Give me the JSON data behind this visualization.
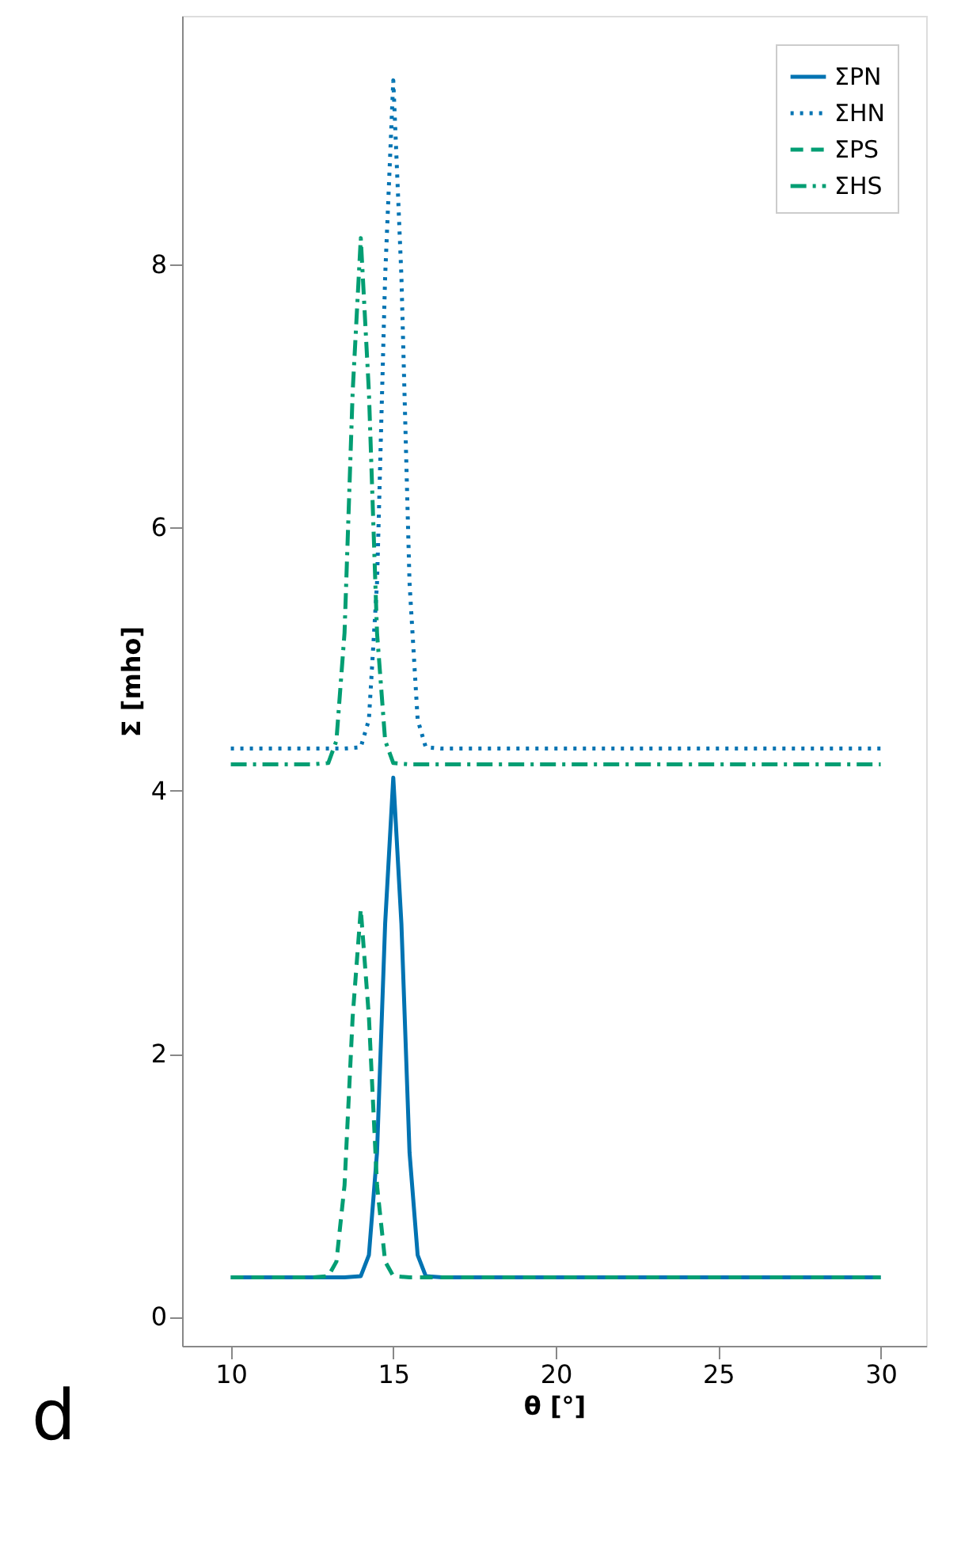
{
  "chart_data": {
    "type": "line",
    "xlabel": "θ [°]",
    "ylabel": "Σ [mho]",
    "xlim": [
      8.5,
      31.4
    ],
    "ylim": [
      -0.22,
      9.89
    ],
    "xticks": [
      10,
      15,
      20,
      25,
      30
    ],
    "yticks": [
      0,
      2,
      4,
      6,
      8
    ],
    "grid": false,
    "legend": "top right",
    "annotations": [
      "d"
    ],
    "series": [
      {
        "name": "ΣPN",
        "color": "#0173b2",
        "line_style": "solid",
        "x": [
          10,
          13.5,
          14,
          14.25,
          14.5,
          14.75,
          15,
          15.25,
          15.5,
          15.75,
          16,
          16.5,
          30
        ],
        "values": [
          0.3,
          0.3,
          0.31,
          0.47,
          1.25,
          2.99,
          4.1,
          2.99,
          1.25,
          0.47,
          0.31,
          0.3,
          0.3
        ]
      },
      {
        "name": "ΣHN",
        "color": "#0173b2",
        "line_style": "dotted",
        "x": [
          10,
          13.5,
          14,
          14.25,
          14.5,
          14.75,
          15,
          15.25,
          15.5,
          15.75,
          16,
          16.5,
          30
        ],
        "values": [
          4.32,
          4.32,
          4.33,
          4.54,
          5.58,
          7.91,
          9.4,
          7.91,
          5.58,
          4.54,
          4.33,
          4.32,
          4.32
        ]
      },
      {
        "name": "ΣPS",
        "color": "#029e73",
        "line_style": "dashed",
        "x": [
          10,
          12.5,
          13,
          13.25,
          13.5,
          13.75,
          14,
          14.25,
          14.5,
          14.75,
          15,
          15.5,
          30
        ],
        "values": [
          0.3,
          0.3,
          0.31,
          0.42,
          1.0,
          2.28,
          3.1,
          2.28,
          1.0,
          0.42,
          0.31,
          0.3,
          0.3
        ]
      },
      {
        "name": "ΣHS",
        "color": "#029e73",
        "line_style": "dashdot",
        "x": [
          10,
          12.5,
          13,
          13.25,
          13.5,
          13.75,
          14,
          14.25,
          14.5,
          14.75,
          15,
          15.5,
          30
        ],
        "values": [
          4.2,
          4.2,
          4.21,
          4.38,
          5.2,
          7.03,
          8.2,
          7.03,
          5.2,
          4.38,
          4.21,
          4.2,
          4.2
        ]
      }
    ]
  }
}
